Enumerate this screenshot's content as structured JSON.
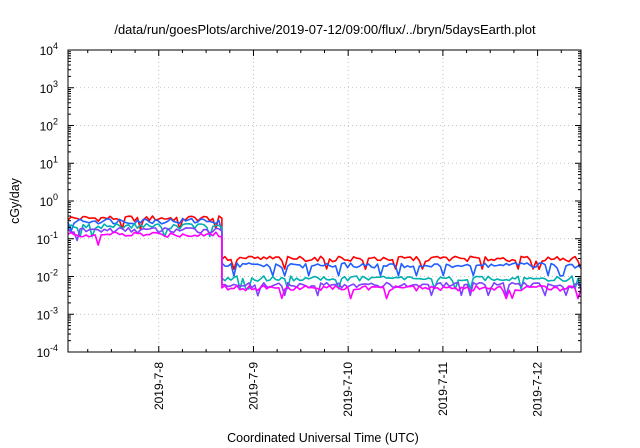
{
  "chart_data": {
    "type": "line",
    "title": "/data/run/goesPlots/archive/2019-07-12/09:00/flux/../bryn/5daysEarth.plot",
    "xlabel": "Coordinated Universal Time (UTC)",
    "ylabel": "cGy/day",
    "y_scale": "log",
    "ylim": [
      0.0001,
      10000
    ],
    "y_ticks": [
      {
        "base": "10",
        "exp": "4",
        "value": 10000
      },
      {
        "base": "10",
        "exp": "3",
        "value": 1000
      },
      {
        "base": "10",
        "exp": "2",
        "value": 100
      },
      {
        "base": "10",
        "exp": "1",
        "value": 10
      },
      {
        "base": "10",
        "exp": "0",
        "value": 1
      },
      {
        "base": "10",
        "exp": "-1",
        "value": 0.1
      },
      {
        "base": "10",
        "exp": "-2",
        "value": 0.01
      },
      {
        "base": "10",
        "exp": "-3",
        "value": 0.001
      },
      {
        "base": "10",
        "exp": "-4",
        "value": 0.0001
      }
    ],
    "xlim": [
      "2019-07-07 01:00",
      "2019-07-12 11:00"
    ],
    "x_ticks": [
      "2019-7-8",
      "2019-7-9",
      "2019-7-10",
      "2019-7-11",
      "2019-7-12"
    ],
    "grid": true,
    "legend": "none",
    "series": [
      {
        "color": "#ff0000",
        "segments": [
          {
            "from": "2019-07-07 01:00",
            "to": "2019-07-08 16:00",
            "level": 0.35
          },
          {
            "from": "2019-07-08 16:00",
            "to": "2019-07-12 11:00",
            "level": 0.03
          }
        ]
      },
      {
        "color": "#1f5fff",
        "segments": [
          {
            "from": "2019-07-07 01:00",
            "to": "2019-07-08 16:00",
            "level": 0.3
          },
          {
            "from": "2019-07-08 16:00",
            "to": "2019-07-12 11:00",
            "level": 0.02
          }
        ]
      },
      {
        "color": "#00b0b0",
        "segments": [
          {
            "from": "2019-07-07 01:00",
            "to": "2019-07-08 16:00",
            "level": 0.22
          },
          {
            "from": "2019-07-08 16:00",
            "to": "2019-07-12 11:00",
            "level": 0.009
          }
        ]
      },
      {
        "color": "#8040ff",
        "segments": [
          {
            "from": "2019-07-07 01:00",
            "to": "2019-07-08 16:00",
            "level": 0.17
          },
          {
            "from": "2019-07-08 16:00",
            "to": "2019-07-12 11:00",
            "level": 0.006
          }
        ]
      },
      {
        "color": "#ff00ff",
        "segments": [
          {
            "from": "2019-07-07 01:00",
            "to": "2019-07-08 16:00",
            "level": 0.13
          },
          {
            "from": "2019-07-08 16:00",
            "to": "2019-07-12 11:00",
            "level": 0.005
          }
        ]
      }
    ]
  }
}
